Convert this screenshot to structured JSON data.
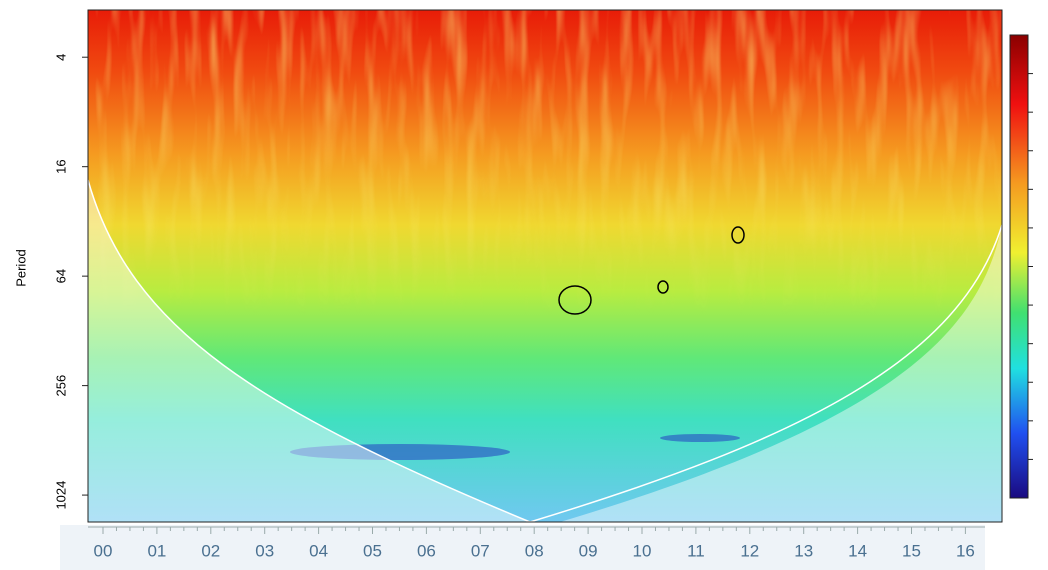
{
  "chart_data": {
    "type": "wavelet",
    "ylabel": "Period",
    "ylog": true,
    "yinverted": true,
    "ylim": [
      2.2,
      1440
    ],
    "yticks": [
      4,
      16,
      64,
      256,
      1024
    ],
    "categories": [
      "00",
      "01",
      "02",
      "03",
      "04",
      "05",
      "06",
      "07",
      "08",
      "09",
      "10",
      "11",
      "12",
      "13",
      "14",
      "15",
      "16"
    ]
  }
}
